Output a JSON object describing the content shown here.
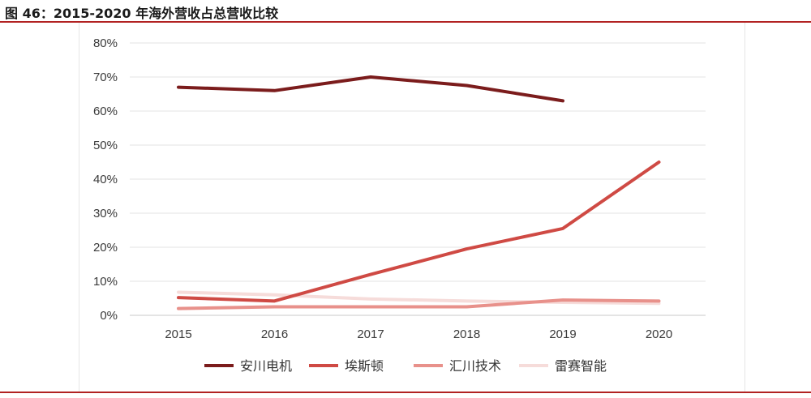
{
  "figure": {
    "title": "图 46：2015-2020 年海外营收占总营收比较"
  },
  "chart_data": {
    "type": "line",
    "title": "",
    "xlabel": "",
    "ylabel": "",
    "categories": [
      "2015",
      "2016",
      "2017",
      "2018",
      "2019",
      "2020"
    ],
    "yticks": [
      "0%",
      "10%",
      "20%",
      "30%",
      "40%",
      "50%",
      "60%",
      "70%",
      "80%"
    ],
    "ylim": [
      0,
      80
    ],
    "grid": true,
    "legend_position": "bottom",
    "series": [
      {
        "name": "安川电机",
        "color": "#7b1c1c",
        "values": [
          67,
          66,
          70,
          67.5,
          63,
          null
        ]
      },
      {
        "name": "埃斯顿",
        "color": "#cf4a44",
        "values": [
          5.2,
          4.2,
          12,
          19.5,
          25.5,
          45
        ]
      },
      {
        "name": "汇川技术",
        "color": "#e8918b",
        "values": [
          2,
          2.5,
          2.5,
          2.5,
          4.5,
          4.2
        ]
      },
      {
        "name": "雷赛智能",
        "color": "#f6dcda",
        "values": [
          6.8,
          6.0,
          4.8,
          4.2,
          3.8,
          3.5
        ]
      }
    ]
  }
}
